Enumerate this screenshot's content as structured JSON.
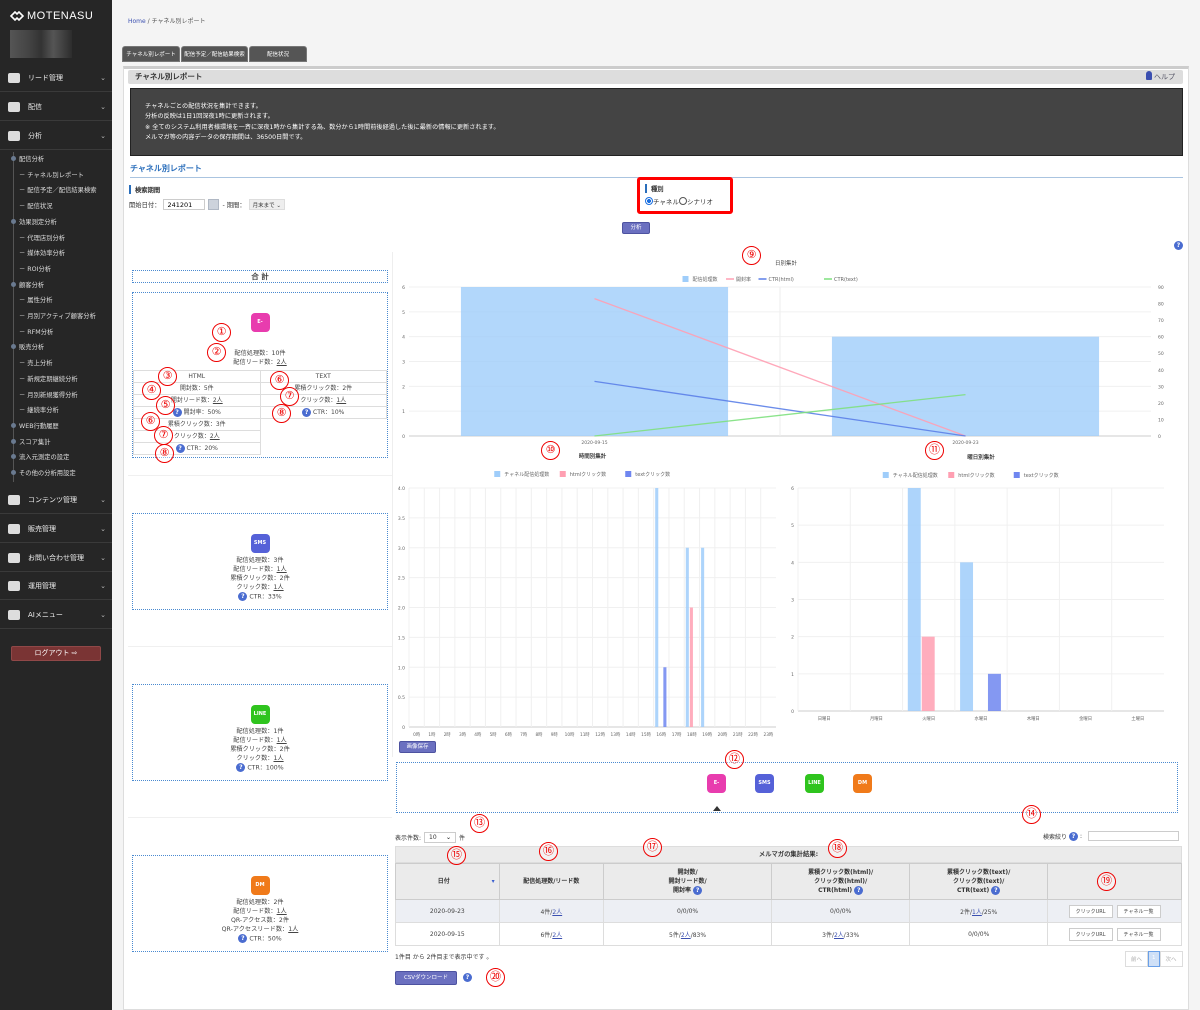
{
  "app": {
    "brand": "MOTENASU"
  },
  "sidebar": {
    "top": [
      {
        "label": "リード管理",
        "icon": "users-icon"
      },
      {
        "label": "配信",
        "icon": "mail-icon"
      },
      {
        "label": "分析",
        "icon": "chart-icon"
      }
    ],
    "sub": [
      {
        "label": "配信分析",
        "h": true
      },
      {
        "label": "－ チャネル別レポート"
      },
      {
        "label": "－ 配信予定／配信結果検索"
      },
      {
        "label": "－ 配信状況"
      },
      {
        "label": "効果測定分析",
        "h": true
      },
      {
        "label": "－ 代理店別分析"
      },
      {
        "label": "－ 媒体効率分析"
      },
      {
        "label": "－ ROI分析"
      },
      {
        "label": "顧客分析",
        "h": true
      },
      {
        "label": "－ 属性分析"
      },
      {
        "label": "－ 月別アクティブ顧客分析"
      },
      {
        "label": "－ RFM分析"
      },
      {
        "label": "販売分析",
        "h": true
      },
      {
        "label": "－ 売上分析"
      },
      {
        "label": "－ 新規定期継続分析"
      },
      {
        "label": "－ 月別新規獲得分析"
      },
      {
        "label": "－ 継続率分析"
      },
      {
        "label": "WEB行動履歴",
        "h": true
      },
      {
        "label": "スコア集計",
        "h": true
      },
      {
        "label": "流入元測定の設定",
        "h": true
      },
      {
        "label": "その他の分析用設定",
        "h": true
      }
    ],
    "bottom": [
      {
        "label": "コンテンツ管理",
        "icon": "content-icon"
      },
      {
        "label": "販売管理",
        "icon": "cart-icon"
      },
      {
        "label": "お問い合わせ管理",
        "icon": "question-icon"
      },
      {
        "label": "運用管理",
        "icon": "sliders-icon"
      },
      {
        "label": "AIメニュー",
        "icon": "ai-icon"
      }
    ],
    "logout": "ログアウト ⇨"
  },
  "breadcrumb": {
    "home": "Home",
    "sep": "/",
    "current": "チャネル別レポート"
  },
  "tabs": [
    "チャネル別レポート",
    "配信予定／配信結果検索",
    "配信状況"
  ],
  "panel": {
    "title": "チャネル別レポート",
    "help": "ヘルプ",
    "info": [
      "チャネルごとの配信状況を集計できます。",
      "分析の反映は1日1回深夜1時に更新されます。",
      "※ 全てのシステム利用者様環境を一斉に深夜1時から集計する為、数分から1時間前後経過した後に最新の情報に更新されます。",
      "メルマガ等の内容データの保存期間は、36500日間です。"
    ],
    "section_title": "チャネル別レポート"
  },
  "search": {
    "period_label": "検索期間",
    "start_label": "開始日付：",
    "start_value": "241201",
    "period_sep": "- 期間：",
    "period_value": "月末まで",
    "kind_label": "種別",
    "kind_options": [
      "チャネル",
      "シナリオ"
    ],
    "kind_selected": "チャネル",
    "analyze": "分析"
  },
  "summary": {
    "total": "合 計",
    "email": {
      "icon": "E-MAIL",
      "processed": "配信処理数：10件",
      "leads_label": "配信リード数：",
      "leads": "2人",
      "html": {
        "head": "HTML",
        "opens": "開封数：5件",
        "open_leads_label": "開封リード数：",
        "open_leads": "2人",
        "open_rate": "開封率：50%",
        "clicks": "累積クリック数：3件",
        "click_label": "クリック数：",
        "click": "2人",
        "ctr": "CTR：20%"
      },
      "text": {
        "head": "TEXT",
        "clicks": "累積クリック数：2件",
        "click_label": "クリック数：",
        "click": "1人",
        "ctr": "CTR：10%"
      }
    },
    "sms": {
      "icon": "SMS",
      "lines": [
        "配信処理数：3件"
      ],
      "leads_label": "配信リード数：",
      "leads": "1人",
      "clicks": "累積クリック数：2件",
      "click_label": "クリック数：",
      "click": "1人",
      "ctr": "CTR：33%"
    },
    "line": {
      "icon": "LINE",
      "lines": [
        "配信処理数：1件"
      ],
      "leads_label": "配信リード数：",
      "leads": "1人",
      "clicks": "累積クリック数：2件",
      "click_label": "クリック数：",
      "click": "1人",
      "ctr": "CTR：100%"
    },
    "dm": {
      "icon": "DM",
      "lines": [
        "配信処理数：2件"
      ],
      "leads_label": "配信リード数：",
      "leads": "1人",
      "clicks": "QR-アクセス数：2件",
      "click_label": "QR-アクセスリード数：",
      "click": "1人",
      "ctr": "CTR：50%"
    }
  },
  "colors": {
    "bar_channel": "#9fcdfa",
    "bar_html": "#ff9fb2",
    "bar_text": "#6f86f0",
    "line_open": "#ff9fb2",
    "line_ctr_html": "#5b7fe8",
    "line_ctr_text": "#7ee07e",
    "email": "#e83cae",
    "sms": "#5561d8",
    "line": "#2fc41e",
    "dm": "#f07a1a"
  },
  "chart_data": [
    {
      "type": "bar",
      "title": "日別集計",
      "categories": [
        "2020-09-15",
        "2020-09-23"
      ],
      "ylim": [
        0,
        6
      ],
      "y2lim": [
        0,
        90
      ],
      "yticks": [
        0,
        1,
        2,
        3,
        4,
        5,
        6
      ],
      "y2ticks": [
        0,
        10,
        20,
        30,
        40,
        50,
        60,
        70,
        80,
        90
      ],
      "series": [
        {
          "name": "配信処理数",
          "type": "bar",
          "axis": "left",
          "values": [
            6,
            4
          ]
        },
        {
          "name": "開封率",
          "type": "line",
          "axis": "right",
          "values": [
            83,
            0
          ]
        },
        {
          "name": "CTR(html)",
          "type": "line",
          "axis": "right",
          "values": [
            33,
            0
          ]
        },
        {
          "name": "CTR(text)",
          "type": "line",
          "axis": "right",
          "values": [
            0,
            25
          ]
        }
      ],
      "legend": "top"
    },
    {
      "type": "bar",
      "title": "時間別集計",
      "categories": [
        "0時",
        "1時",
        "2時",
        "3時",
        "4時",
        "5時",
        "6時",
        "7時",
        "8時",
        "9時",
        "10時",
        "11時",
        "12時",
        "13時",
        "14時",
        "15時",
        "16時",
        "17時",
        "18時",
        "19時",
        "20時",
        "21時",
        "22時",
        "23時"
      ],
      "ylim": [
        0,
        4
      ],
      "yticks": [
        "0",
        "0.5",
        "1.0",
        "1.5",
        "2.0",
        "2.5",
        "3.0",
        "3.5",
        "4.0"
      ],
      "series": [
        {
          "name": "チャネル配信処理数",
          "values": [
            0,
            0,
            0,
            0,
            0,
            0,
            0,
            0,
            0,
            0,
            0,
            0,
            0,
            0,
            0,
            0,
            4,
            0,
            3,
            3,
            0,
            0,
            0,
            0
          ]
        },
        {
          "name": "htmlクリック数",
          "values": [
            0,
            0,
            0,
            0,
            0,
            0,
            0,
            0,
            0,
            0,
            0,
            0,
            0,
            0,
            0,
            0,
            0,
            0,
            2,
            0,
            0,
            0,
            0,
            0
          ]
        },
        {
          "name": "textクリック数",
          "values": [
            0,
            0,
            0,
            0,
            0,
            0,
            0,
            0,
            0,
            0,
            0,
            0,
            0,
            0,
            0,
            0,
            1,
            0,
            0,
            0,
            0,
            0,
            0,
            0
          ]
        }
      ],
      "legend": "top"
    },
    {
      "type": "bar",
      "title": "曜日別集計",
      "categories": [
        "日曜日",
        "月曜日",
        "火曜日",
        "水曜日",
        "木曜日",
        "金曜日",
        "土曜日"
      ],
      "ylim": [
        0,
        6
      ],
      "yticks": [
        "0",
        "1",
        "2",
        "3",
        "4",
        "5",
        "6"
      ],
      "series": [
        {
          "name": "チャネル配信処理数",
          "values": [
            0,
            0,
            6,
            4,
            0,
            0,
            0
          ]
        },
        {
          "name": "htmlクリック数",
          "values": [
            0,
            0,
            2,
            0,
            0,
            0,
            0
          ]
        },
        {
          "name": "textクリック数",
          "values": [
            0,
            0,
            0,
            1,
            0,
            0,
            0
          ]
        }
      ],
      "legend": "top"
    }
  ],
  "save_image": "画像保存",
  "channels": [
    {
      "label": "E-MAIL",
      "key": "email",
      "selected": true
    },
    {
      "label": "SMS",
      "key": "sms"
    },
    {
      "label": "LINE",
      "key": "line"
    },
    {
      "label": "DM",
      "key": "dm"
    }
  ],
  "table": {
    "count_label": "表示件数:",
    "count_value": "10",
    "count_unit": "件",
    "filter_label": "検索絞り",
    "caption": "メルマガの集計結果:",
    "headers": [
      "日付",
      "配信処理数/リード数",
      "開封数/\n開封リード数/\n開封率",
      "累積クリック数(html)/\nクリック数(html)/\nCTR(html)",
      "累積クリック数(text)/\nクリック数(text)/\nCTR(text)",
      ""
    ],
    "rows": [
      {
        "date": "2020-09-23",
        "proc": "4件/",
        "proc_l": "2人",
        "open": "0/0/0%",
        "open_a": "",
        "open_l": "",
        "open_b": "",
        "html": "0/0/0%",
        "html_a": "",
        "html_l": "",
        "html_b": "",
        "text_a": "2件/",
        "text_l": "1人",
        "text_b": "/25%"
      },
      {
        "date": "2020-09-15",
        "proc": "6件/",
        "proc_l": "2人",
        "open_a": "5件/",
        "open_l": "2人",
        "open_b": "/83%",
        "html_a": "3件/",
        "html_l": "2人",
        "html_b": "/33%",
        "text": "0/0/0%"
      }
    ],
    "btn_click": "クリックURL",
    "btn_channel": "チャネル一覧",
    "footer": "1件目 から 2件目まで表示中です 。",
    "prev": "前へ",
    "page": "1",
    "next": "次へ"
  },
  "csv": "CSVダウンロード",
  "annotations": [
    "①",
    "②",
    "③",
    "④",
    "⑤",
    "⑥",
    "⑦",
    "⑧",
    "⑥",
    "⑦",
    "⑧",
    "⑨",
    "⑩",
    "⑪",
    "⑫",
    "⑬",
    "⑭",
    "⑮",
    "⑯",
    "⑰",
    "⑱",
    "⑲",
    "⑳"
  ]
}
